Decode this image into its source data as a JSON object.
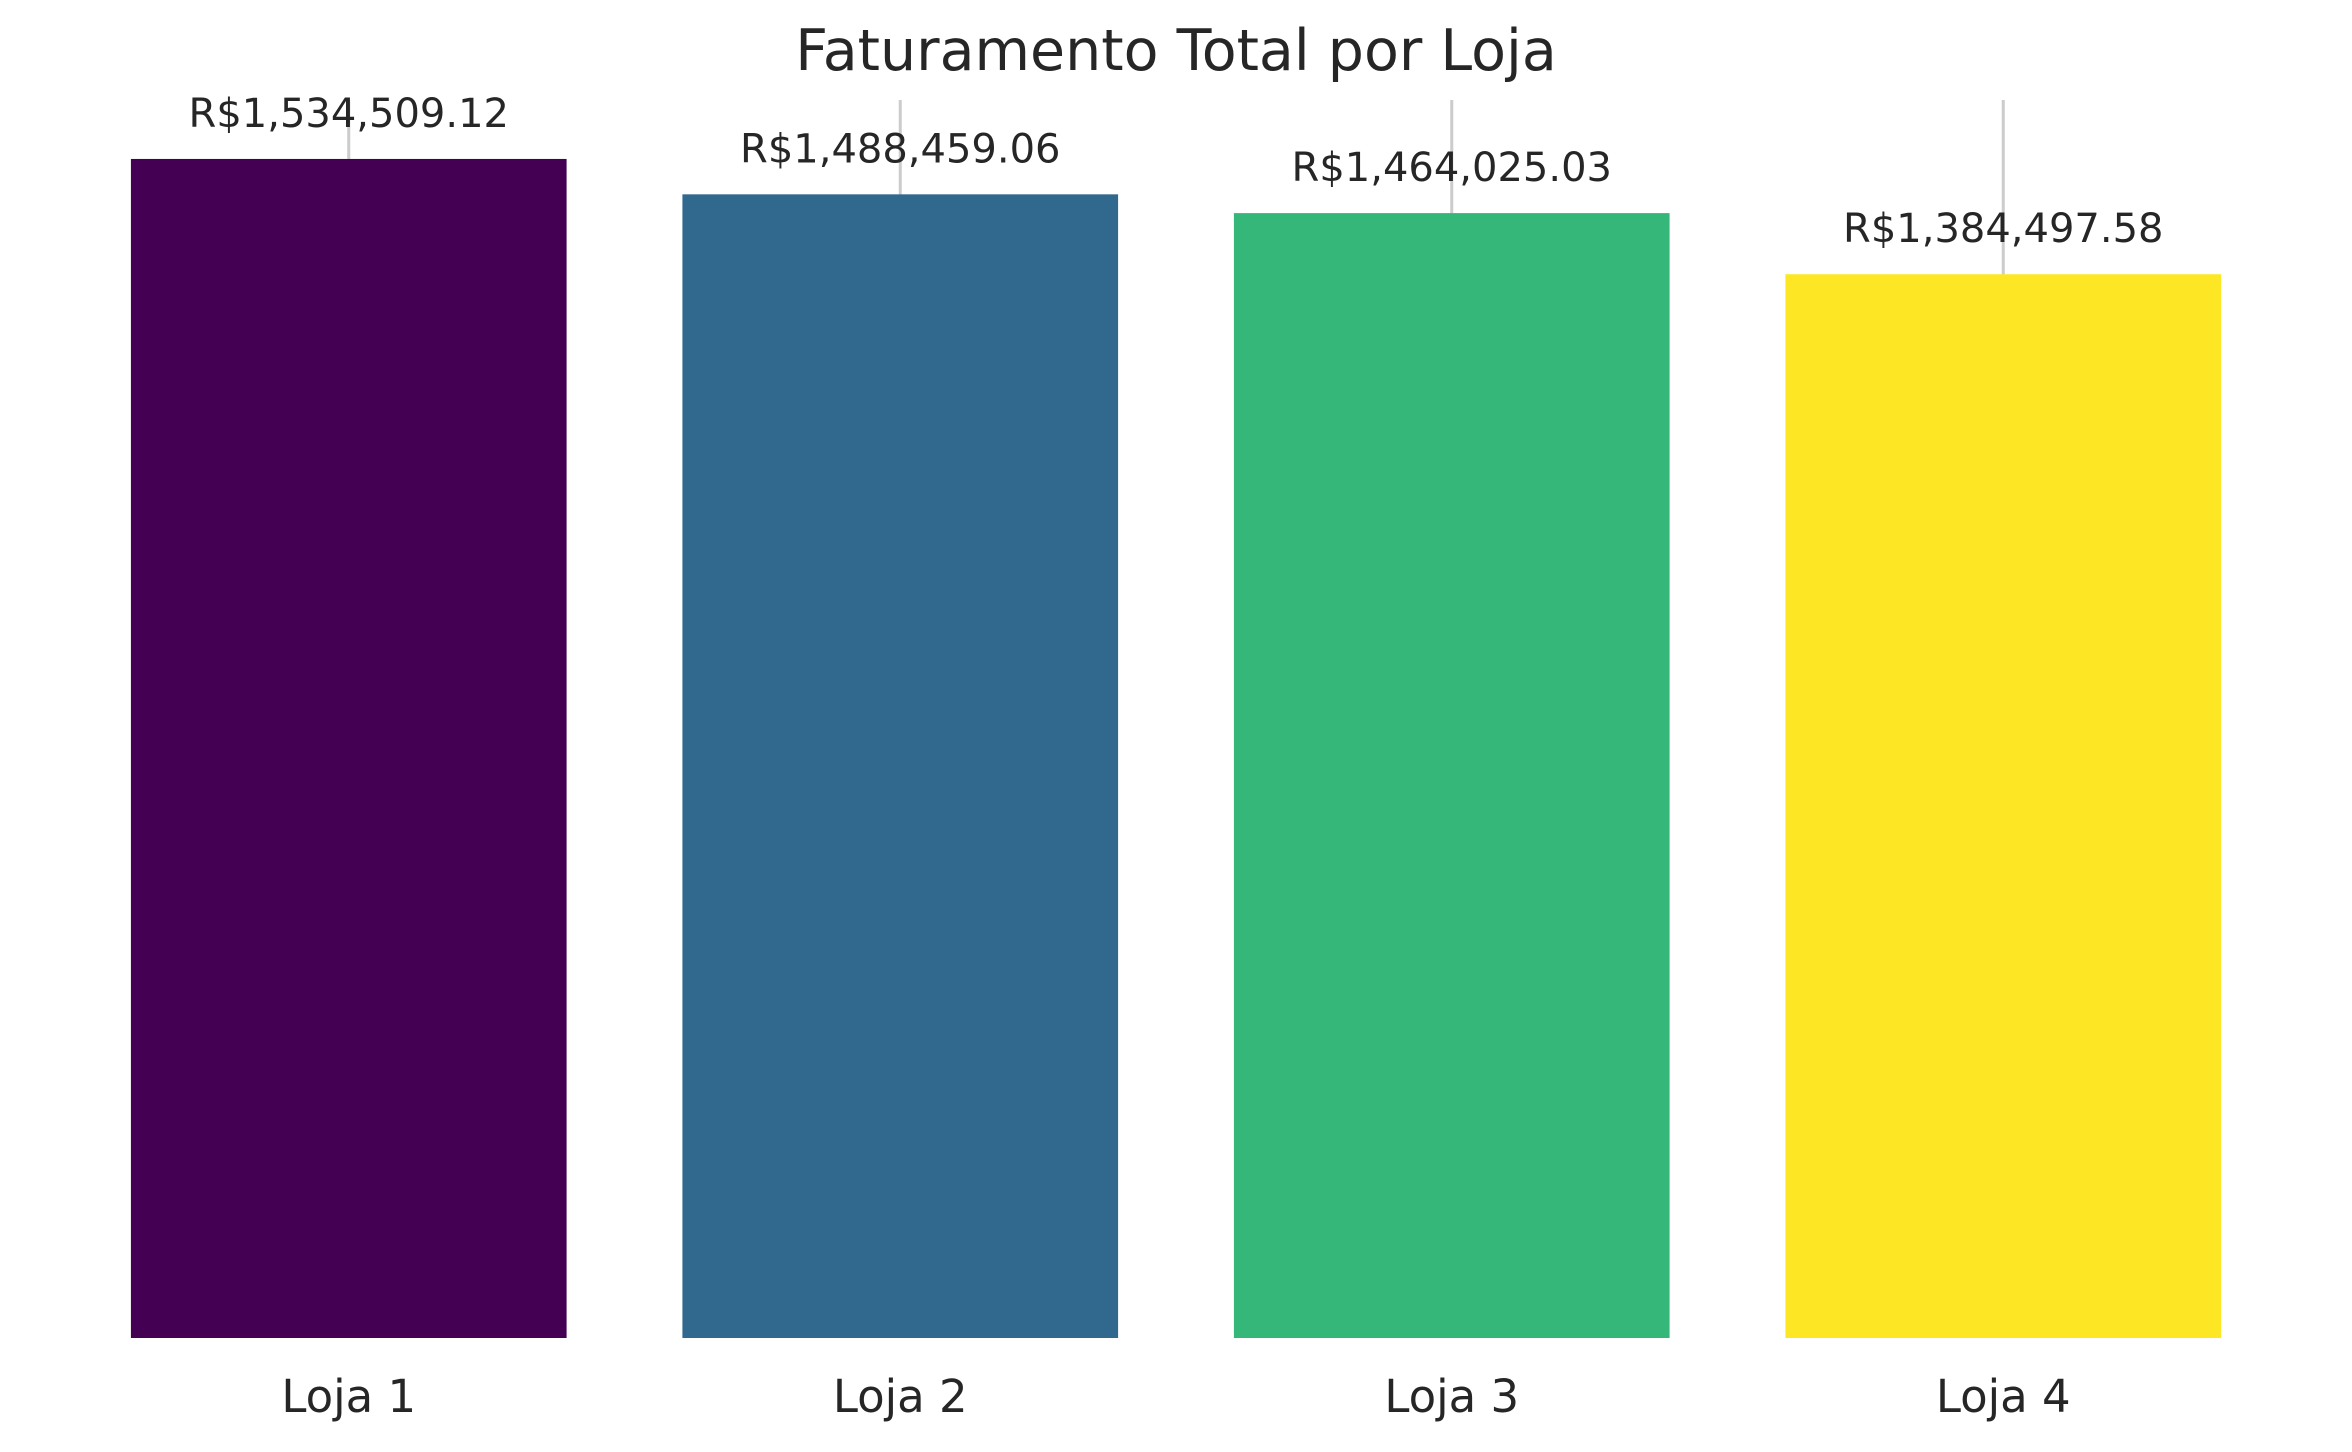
{
  "chart_data": {
    "type": "bar",
    "title": "Faturamento Total por Loja",
    "xlabel": "",
    "ylabel": "",
    "categories": [
      "Loja 1",
      "Loja 2",
      "Loja 3",
      "Loja 4"
    ],
    "values": [
      1534509.12,
      1488459.06,
      1464025.03,
      1384497.58
    ],
    "value_labels": [
      "R$1,534,509.12",
      "R$1,488,459.06",
      "R$1,464,025.03",
      "R$1,384,497.58"
    ],
    "colors": [
      "#440154",
      "#31688e",
      "#35b779",
      "#fde725"
    ],
    "ylim": [
      0,
      1611234.58
    ],
    "grid": true,
    "legend": "none"
  }
}
